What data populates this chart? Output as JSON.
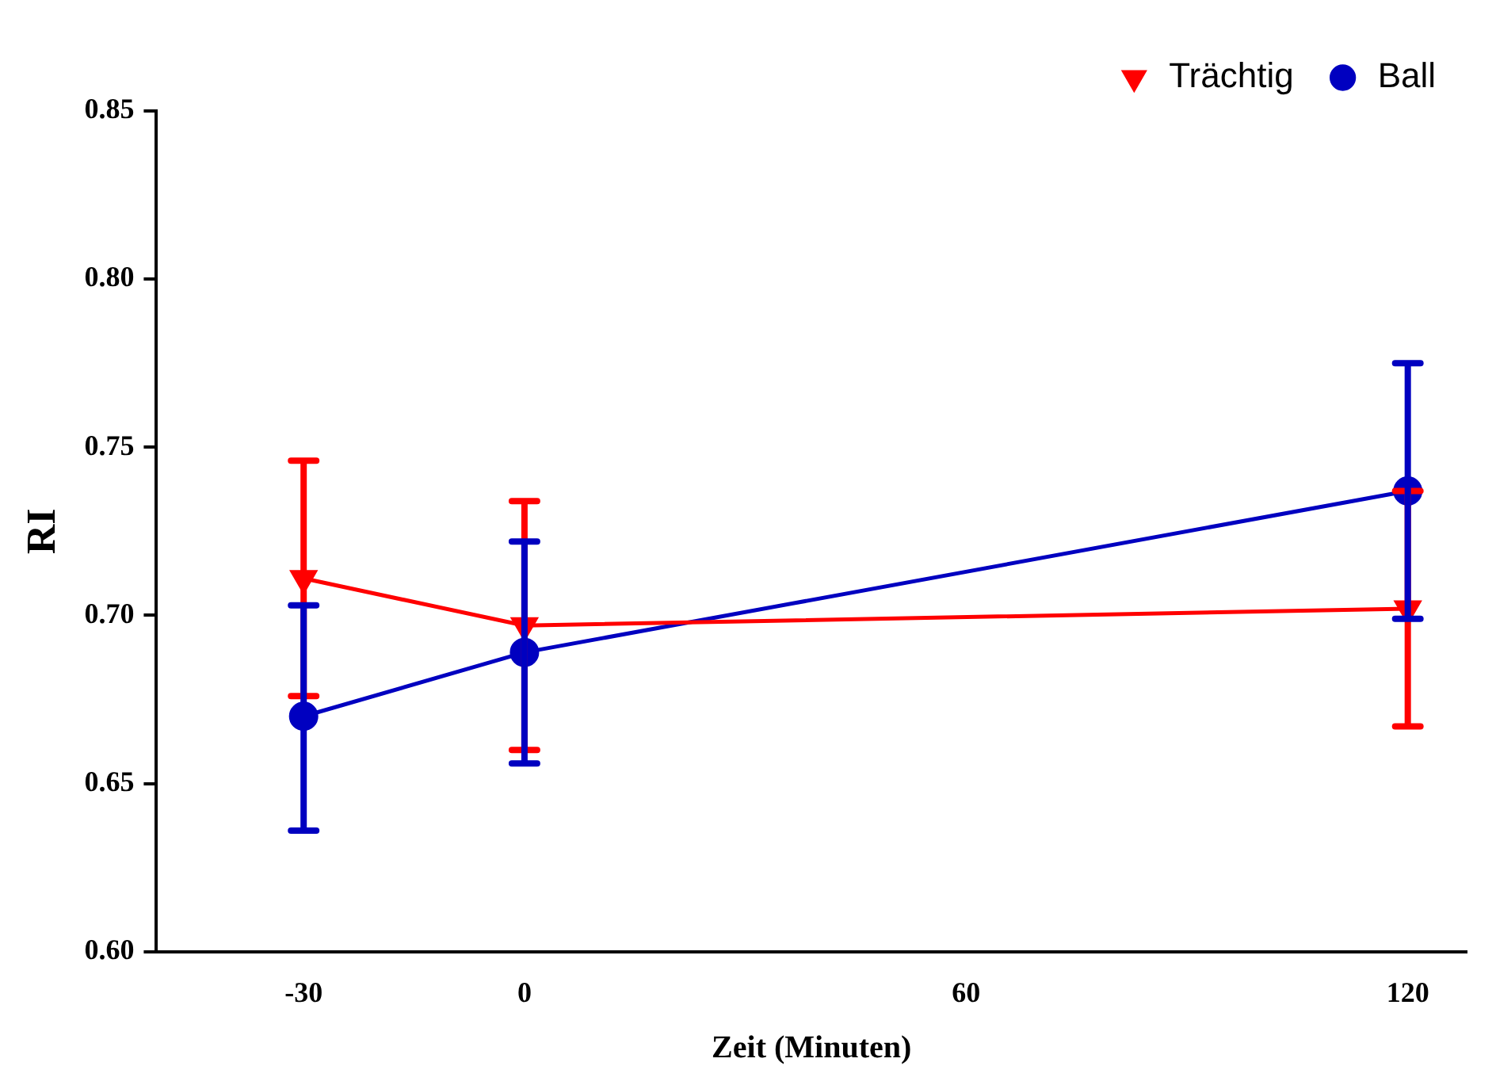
{
  "chart_data": {
    "type": "line",
    "xlabel": "Zeit (Minuten)",
    "ylabel": "RI",
    "x": [
      -30,
      0,
      120
    ],
    "xlim": [
      -50,
      128
    ],
    "xticks": [
      -30,
      0,
      60,
      120
    ],
    "ylim": [
      0.6,
      0.85
    ],
    "yticks": [
      {
        "value": 0.6,
        "label": "0.60"
      },
      {
        "value": 0.65,
        "label": "0.65"
      },
      {
        "value": 0.7,
        "label": "0.70"
      },
      {
        "value": 0.75,
        "label": "0.75"
      },
      {
        "value": 0.8,
        "label": "0.80"
      },
      {
        "value": 0.85,
        "label": "0.85"
      }
    ],
    "grid": false,
    "legend": "top right",
    "line_style": "solid",
    "series": [
      {
        "name": "Trächtig",
        "color": "#ff0000",
        "marker": "triangle",
        "values": [
          0.711,
          0.697,
          0.702
        ],
        "errors": [
          [
            0.676,
            0.746
          ],
          [
            0.66,
            0.734
          ],
          [
            0.667,
            0.737
          ]
        ]
      },
      {
        "name": "Ball",
        "color": "#0000c0",
        "marker": "circle",
        "values": [
          0.67,
          0.689,
          0.737
        ],
        "errors": [
          [
            0.636,
            0.703
          ],
          [
            0.656,
            0.722
          ],
          [
            0.699,
            0.775
          ]
        ]
      }
    ]
  }
}
